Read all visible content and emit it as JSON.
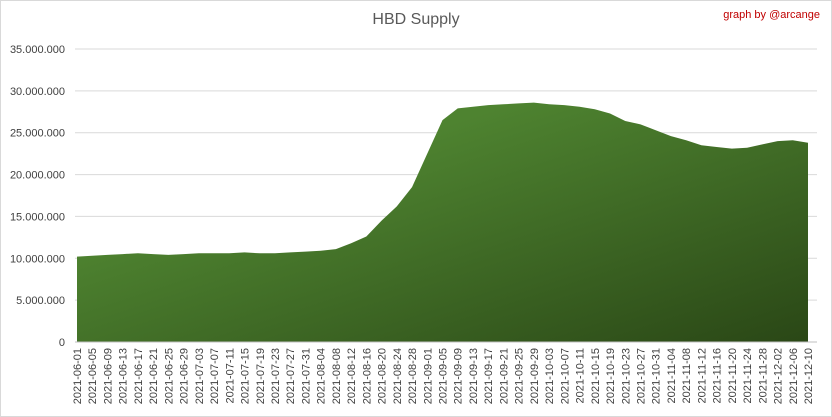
{
  "chart_data": {
    "type": "area",
    "title": "HBD Supply",
    "annotation": "graph by @arcange",
    "color": "#4e8330",
    "grid": true,
    "categories": [
      "2021-06-01",
      "2021-06-05",
      "2021-06-09",
      "2021-06-13",
      "2021-06-17",
      "2021-06-21",
      "2021-06-25",
      "2021-06-29",
      "2021-07-03",
      "2021-07-07",
      "2021-07-11",
      "2021-07-15",
      "2021-07-19",
      "2021-07-23",
      "2021-07-27",
      "2021-07-31",
      "2021-08-04",
      "2021-08-08",
      "2021-08-12",
      "2021-08-16",
      "2021-08-20",
      "2021-08-24",
      "2021-08-28",
      "2021-09-01",
      "2021-09-05",
      "2021-09-09",
      "2021-09-13",
      "2021-09-17",
      "2021-09-21",
      "2021-09-25",
      "2021-09-29",
      "2021-10-03",
      "2021-10-07",
      "2021-10-11",
      "2021-10-15",
      "2021-10-19",
      "2021-10-23",
      "2021-10-27",
      "2021-10-31",
      "2021-11-04",
      "2021-11-08",
      "2021-11-12",
      "2021-11-16",
      "2021-11-20",
      "2021-11-24",
      "2021-11-28",
      "2021-12-02",
      "2021-12-06",
      "2021-12-10"
    ],
    "values": [
      10200000,
      10300000,
      10400000,
      10500000,
      10600000,
      10500000,
      10400000,
      10500000,
      10600000,
      10600000,
      10600000,
      10700000,
      10600000,
      10600000,
      10700000,
      10800000,
      10900000,
      11100000,
      11800000,
      12600000,
      14500000,
      16200000,
      18500000,
      22500000,
      26500000,
      27900000,
      28100000,
      28300000,
      28400000,
      28500000,
      28600000,
      28400000,
      28300000,
      28100000,
      27800000,
      27300000,
      26400000,
      26000000,
      25300000,
      24600000,
      24100000,
      23500000,
      23300000,
      23100000,
      23200000,
      23600000,
      24000000,
      24100000,
      23800000
    ],
    "ylim": [
      0,
      35000000
    ],
    "yticks": [
      0,
      {
        "value": 5000000,
        "label": "5.000.000"
      },
      {
        "value": 10000000,
        "label": "10.000.000"
      },
      {
        "value": 15000000,
        "label": "15.000.000"
      },
      {
        "value": 20000000,
        "label": "20.000.000"
      },
      {
        "value": 25000000,
        "label": "25.000.000"
      },
      {
        "value": 30000000,
        "label": "30.000.000"
      },
      {
        "value": 35000000,
        "label": "35.000.000"
      }
    ]
  }
}
